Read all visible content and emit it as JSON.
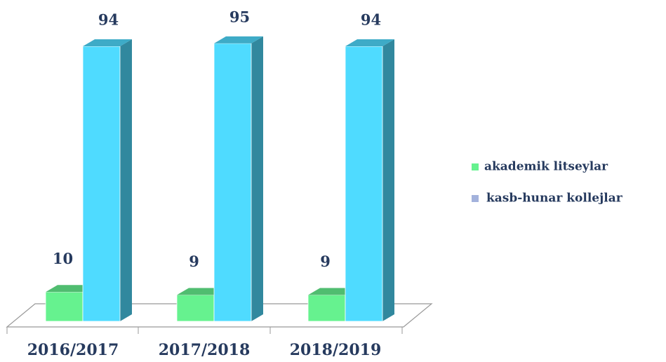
{
  "chart_data": {
    "type": "bar3d",
    "categories": [
      "2016/2017",
      "2017/2018",
      "2018/2019"
    ],
    "series": [
      {
        "name": "akademik litseylar",
        "color": "#66f28f",
        "legend_color": "#66f28f",
        "values": [
          10,
          9,
          9
        ]
      },
      {
        "name": "kasb-hunar kollejlar",
        "color": "#4fdbff",
        "legend_color": "#a3b2dc",
        "values": [
          94,
          95,
          94
        ]
      }
    ],
    "ylim": [
      0,
      100
    ],
    "legend": "right"
  }
}
